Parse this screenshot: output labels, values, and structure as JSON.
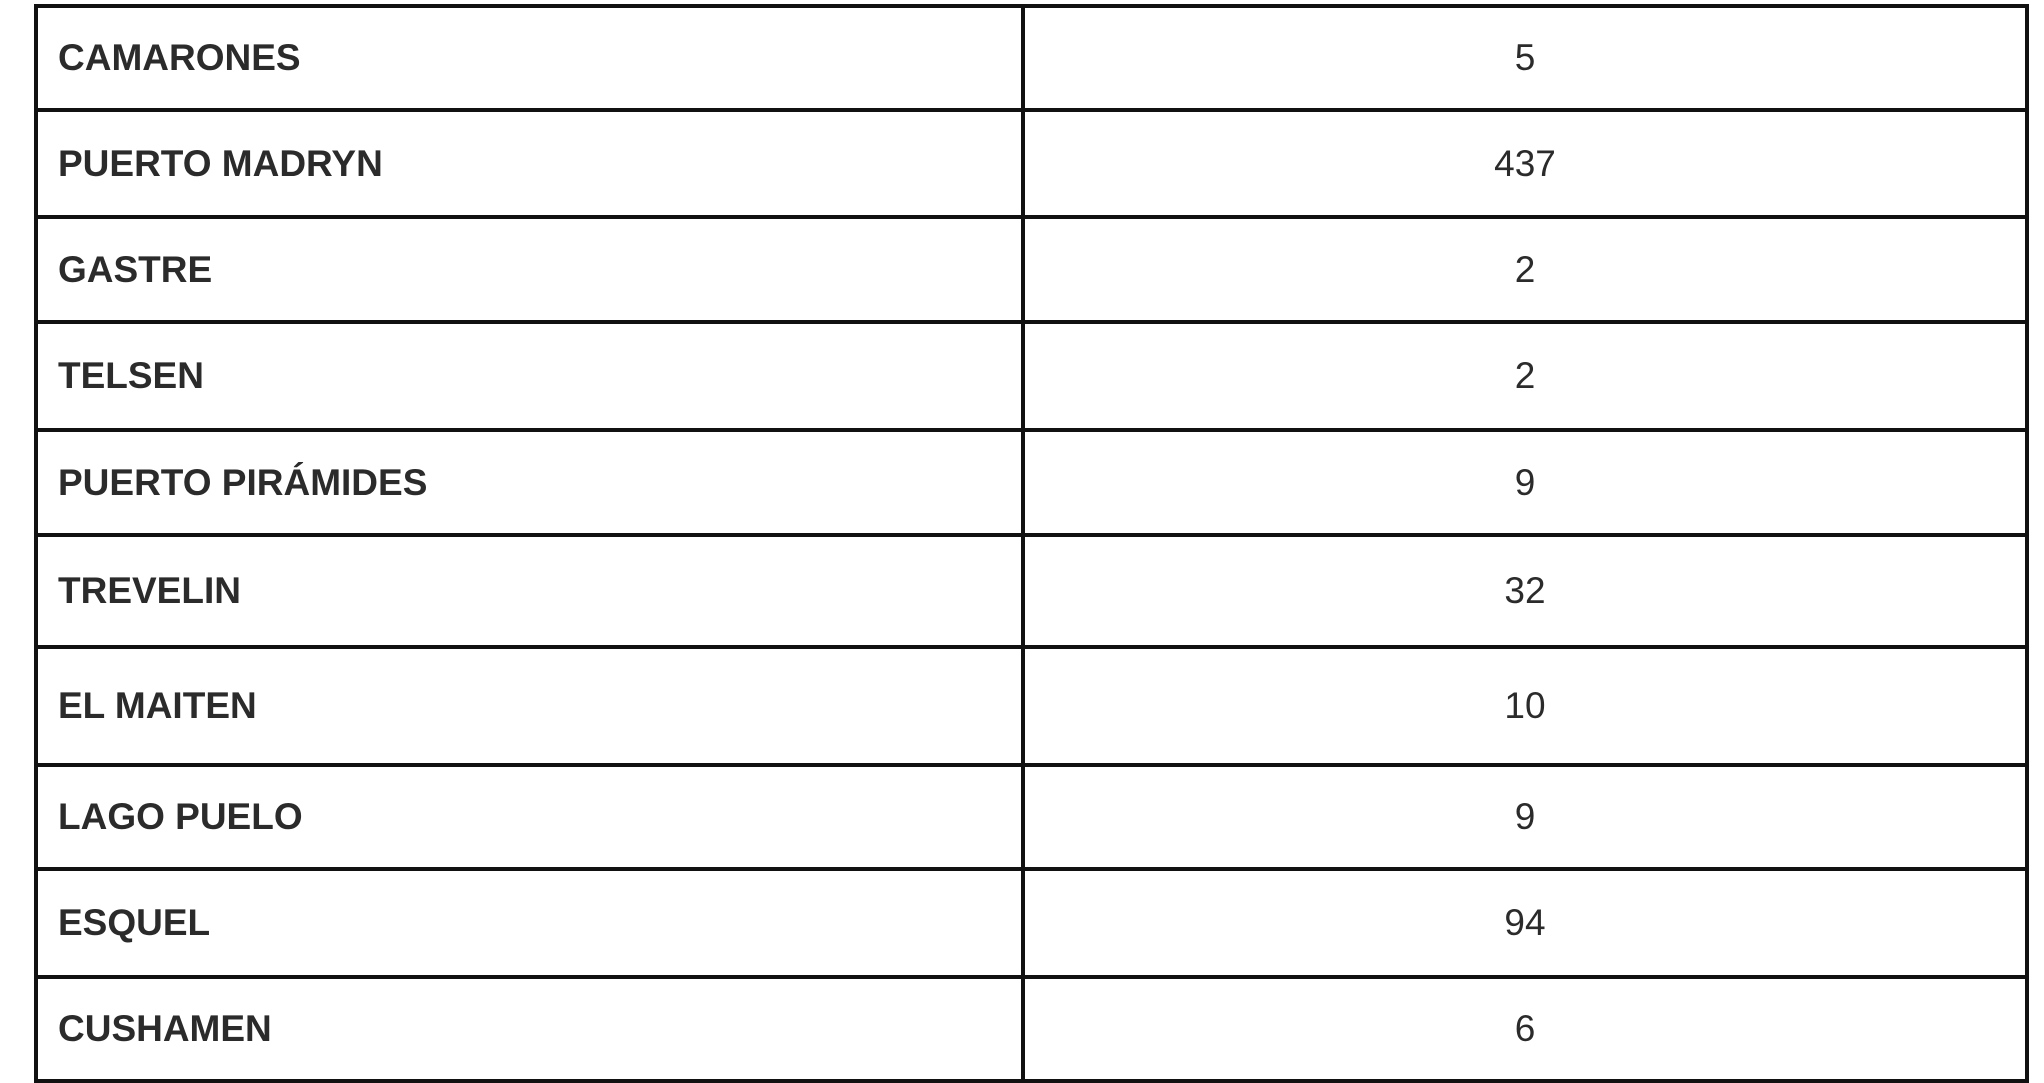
{
  "table": {
    "rows": [
      {
        "locality": "CAMARONES",
        "value": "5"
      },
      {
        "locality": "PUERTO MADRYN",
        "value": "437"
      },
      {
        "locality": "GASTRE",
        "value": "2"
      },
      {
        "locality": "TELSEN",
        "value": "2"
      },
      {
        "locality": "PUERTO PIRÁMIDES",
        "value": "9"
      },
      {
        "locality": "TREVELIN",
        "value": "32"
      },
      {
        "locality": "EL MAITEN",
        "value": "10"
      },
      {
        "locality": "LAGO PUELO",
        "value": "9"
      },
      {
        "locality": "ESQUEL",
        "value": "94"
      },
      {
        "locality": "CUSHAMEN",
        "value": "6"
      }
    ]
  }
}
